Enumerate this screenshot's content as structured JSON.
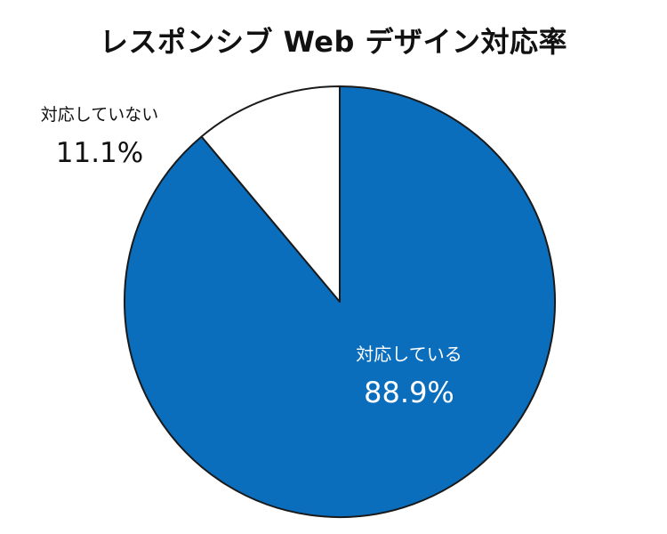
{
  "chart_data": {
    "type": "pie",
    "title": "レスポンシブ Web デザイン対応率",
    "slices": [
      {
        "label": "対応している",
        "percent_label": "88.9%",
        "value": 88.9,
        "color": "#0a6ebd",
        "text_color": "#ffffff"
      },
      {
        "label": "対応していない",
        "percent_label": "11.1%",
        "value": 11.1,
        "color": "#ffffff",
        "text_color": "#111111"
      }
    ],
    "legend": "none",
    "grid": false
  }
}
